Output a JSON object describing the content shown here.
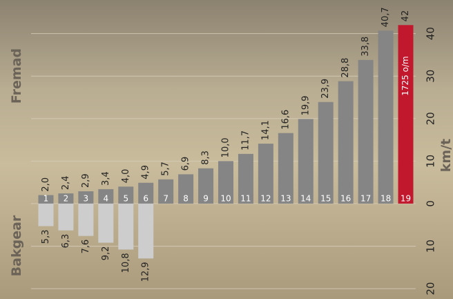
{
  "chart_data": {
    "type": "bar",
    "axis_label": "km/t",
    "side_labels": {
      "top": "Fremad",
      "bottom": "Bakgear"
    },
    "categories": [
      "1",
      "2",
      "3",
      "4",
      "5",
      "6",
      "7",
      "8",
      "9",
      "10",
      "11",
      "12",
      "13",
      "14",
      "15",
      "16",
      "17",
      "18",
      "19"
    ],
    "series": [
      {
        "name": "Fremad",
        "color": "#858585",
        "highlight": {
          "index": 18,
          "color": "#c2182d"
        },
        "values": [
          2.0,
          2.4,
          2.9,
          3.4,
          4.0,
          4.9,
          5.7,
          6.9,
          8.3,
          10.0,
          11.7,
          14.1,
          16.6,
          19.9,
          23.9,
          28.8,
          33.8,
          40.7,
          42
        ],
        "value_labels": [
          "2,0",
          "2,4",
          "2,9",
          "3,4",
          "4,0",
          "4,9",
          "5,7",
          "6,9",
          "8,3",
          "10,0",
          "11,7",
          "14,1",
          "16,6",
          "19,9",
          "23,9",
          "28,8",
          "33,8",
          "40,7",
          "42"
        ]
      },
      {
        "name": "Bakgear",
        "color": "#cdcdcd",
        "values": [
          -5.3,
          -6.3,
          -7.6,
          -9.2,
          -10.8,
          -12.9,
          null,
          null,
          null,
          null,
          null,
          null,
          null,
          null,
          null,
          null,
          null,
          null,
          null
        ],
        "value_labels": [
          "5,3",
          "6,3",
          "7,6",
          "9,2",
          "10,8",
          "12,9",
          null,
          null,
          null,
          null,
          null,
          null,
          null,
          null,
          null,
          null,
          null,
          null,
          null
        ]
      }
    ],
    "annotation": {
      "index": 18,
      "text": "1725 o/m"
    },
    "ylim": [
      -20,
      44
    ],
    "yticks": [
      {
        "value": -20,
        "label": "20"
      },
      {
        "value": -10,
        "label": "10"
      },
      0,
      10,
      20,
      30,
      40
    ],
    "grid": true
  }
}
